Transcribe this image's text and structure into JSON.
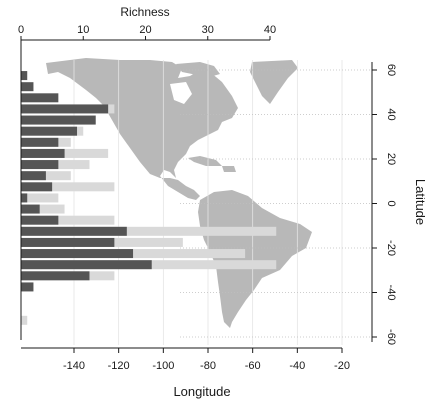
{
  "chart_data": {
    "type": "bar",
    "orientation": "horizontal",
    "top_axis": {
      "label": "Richness",
      "range": [
        0,
        40
      ],
      "ticks": [
        0,
        10,
        20,
        30,
        40
      ]
    },
    "bottom_axis": {
      "label": "Longitude",
      "range": [
        -160,
        -20
      ],
      "ticks": [
        -140,
        -120,
        -100,
        -80,
        -60,
        -40,
        -20
      ],
      "tick_labels": [
        "-140",
        "-120",
        "-100",
        "-80",
        "-60",
        "-40",
        "-20"
      ]
    },
    "right_axis": {
      "label": "Latitude",
      "range": [
        -60,
        60
      ],
      "ticks": [
        60,
        40,
        20,
        0,
        -20,
        -40,
        -60
      ]
    },
    "latitude_bands": [
      60,
      55,
      50,
      45,
      40,
      35,
      30,
      25,
      20,
      15,
      10,
      5,
      0,
      -5,
      -10,
      -15,
      -20,
      -25,
      -30,
      -35,
      -40,
      -45,
      -50,
      -55
    ],
    "series": [
      {
        "key": "dark",
        "color": "#555555",
        "values": [
          1,
          2,
          6,
          14,
          12,
          9,
          6,
          7,
          6,
          4,
          5,
          1,
          3,
          6,
          17,
          15,
          18,
          21,
          11,
          2,
          0,
          0,
          0,
          0
        ]
      },
      {
        "key": "light",
        "color": "#d9d9d9",
        "values": [
          0,
          0,
          0,
          15,
          12,
          10,
          8,
          14,
          11,
          8,
          15,
          6,
          7,
          15,
          41,
          26,
          36,
          41,
          15,
          0,
          0,
          0,
          1,
          0
        ]
      }
    ],
    "grid": true,
    "map": {
      "fill": "#b8b8b8",
      "region": "Americas"
    }
  }
}
